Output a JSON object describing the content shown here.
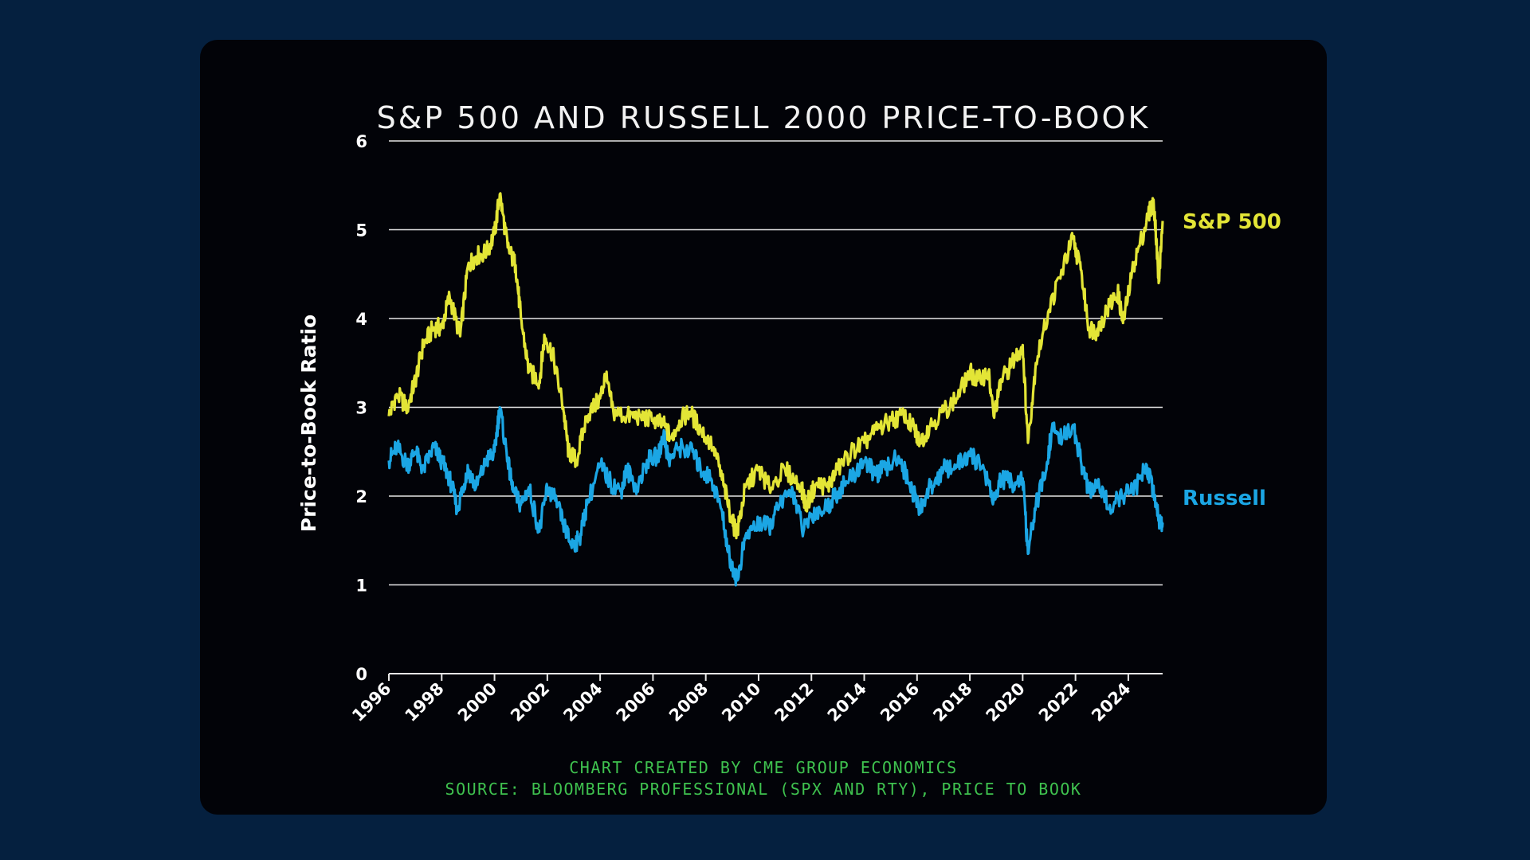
{
  "colors": {
    "background": "#05203f",
    "card": "#020308",
    "sp500": "#e3e536",
    "russell": "#1ba6e4",
    "credit": "#3fc24f",
    "grid": "#e6e6e6",
    "text": "#ffffff"
  },
  "chart_data": {
    "type": "line",
    "title": "S&P 500 AND RUSSELL 2000 PRICE-TO-BOOK",
    "xlabel": "",
    "ylabel": "Price-to-Book Ratio",
    "xlim": [
      1996,
      2025.3
    ],
    "ylim": [
      0,
      6
    ],
    "x_ticks": [
      "1996",
      "1998",
      "2000",
      "2002",
      "2004",
      "2006",
      "2008",
      "2010",
      "2012",
      "2014",
      "2016",
      "2018",
      "2020",
      "2022",
      "2024"
    ],
    "y_ticks": [
      "0",
      "1",
      "2",
      "3",
      "4",
      "5",
      "6"
    ],
    "grid": "horizontal",
    "legend": "inline-right",
    "series": [
      {
        "name": "S&P 500",
        "color": "#e3e536",
        "points": [
          [
            1996.0,
            2.9
          ],
          [
            1996.3,
            3.15
          ],
          [
            1996.7,
            3.0
          ],
          [
            1997.0,
            3.3
          ],
          [
            1997.3,
            3.7
          ],
          [
            1997.7,
            3.9
          ],
          [
            1998.0,
            3.9
          ],
          [
            1998.3,
            4.25
          ],
          [
            1998.7,
            3.8
          ],
          [
            1999.0,
            4.6
          ],
          [
            1999.3,
            4.7
          ],
          [
            1999.7,
            4.75
          ],
          [
            2000.0,
            4.95
          ],
          [
            2000.2,
            5.4
          ],
          [
            2000.5,
            4.8
          ],
          [
            2000.8,
            4.6
          ],
          [
            2001.0,
            4.0
          ],
          [
            2001.3,
            3.4
          ],
          [
            2001.7,
            3.3
          ],
          [
            2001.9,
            3.8
          ],
          [
            2002.2,
            3.6
          ],
          [
            2002.6,
            3.0
          ],
          [
            2002.8,
            2.5
          ],
          [
            2003.1,
            2.4
          ],
          [
            2003.5,
            2.9
          ],
          [
            2004.0,
            3.1
          ],
          [
            2004.2,
            3.35
          ],
          [
            2004.5,
            2.95
          ],
          [
            2005.0,
            2.9
          ],
          [
            2005.5,
            2.9
          ],
          [
            2006.0,
            2.85
          ],
          [
            2006.4,
            2.8
          ],
          [
            2006.7,
            2.65
          ],
          [
            2007.0,
            2.85
          ],
          [
            2007.4,
            2.95
          ],
          [
            2007.8,
            2.75
          ],
          [
            2008.3,
            2.55
          ],
          [
            2008.7,
            2.1
          ],
          [
            2009.0,
            1.7
          ],
          [
            2009.2,
            1.6
          ],
          [
            2009.5,
            2.1
          ],
          [
            2010.0,
            2.3
          ],
          [
            2010.4,
            2.1
          ],
          [
            2011.0,
            2.3
          ],
          [
            2011.6,
            2.1
          ],
          [
            2011.8,
            1.9
          ],
          [
            2012.2,
            2.15
          ],
          [
            2012.6,
            2.1
          ],
          [
            2013.0,
            2.3
          ],
          [
            2013.5,
            2.5
          ],
          [
            2014.0,
            2.6
          ],
          [
            2014.5,
            2.75
          ],
          [
            2015.0,
            2.85
          ],
          [
            2015.5,
            2.9
          ],
          [
            2015.9,
            2.75
          ],
          [
            2016.1,
            2.6
          ],
          [
            2016.5,
            2.8
          ],
          [
            2017.0,
            2.95
          ],
          [
            2017.5,
            3.1
          ],
          [
            2018.0,
            3.4
          ],
          [
            2018.3,
            3.3
          ],
          [
            2018.7,
            3.4
          ],
          [
            2018.9,
            2.9
          ],
          [
            2019.2,
            3.3
          ],
          [
            2019.6,
            3.5
          ],
          [
            2020.0,
            3.7
          ],
          [
            2020.2,
            2.6
          ],
          [
            2020.5,
            3.5
          ],
          [
            2021.0,
            4.1
          ],
          [
            2021.5,
            4.55
          ],
          [
            2021.9,
            4.9
          ],
          [
            2022.2,
            4.55
          ],
          [
            2022.5,
            3.9
          ],
          [
            2022.8,
            3.85
          ],
          [
            2023.2,
            4.1
          ],
          [
            2023.6,
            4.3
          ],
          [
            2023.8,
            3.95
          ],
          [
            2024.2,
            4.6
          ],
          [
            2024.6,
            5.0
          ],
          [
            2024.9,
            5.3
          ],
          [
            2025.0,
            5.2
          ],
          [
            2025.15,
            4.4
          ],
          [
            2025.3,
            5.1
          ]
        ]
      },
      {
        "name": "Russell",
        "color": "#1ba6e4",
        "points": [
          [
            1996.0,
            2.4
          ],
          [
            1996.3,
            2.55
          ],
          [
            1996.7,
            2.35
          ],
          [
            1997.0,
            2.5
          ],
          [
            1997.3,
            2.3
          ],
          [
            1997.7,
            2.55
          ],
          [
            1998.0,
            2.4
          ],
          [
            1998.3,
            2.2
          ],
          [
            1998.6,
            1.85
          ],
          [
            1998.8,
            2.1
          ],
          [
            1999.0,
            2.3
          ],
          [
            1999.3,
            2.1
          ],
          [
            1999.7,
            2.4
          ],
          [
            2000.0,
            2.5
          ],
          [
            2000.2,
            3.0
          ],
          [
            2000.5,
            2.4
          ],
          [
            2000.7,
            2.05
          ],
          [
            2001.0,
            1.9
          ],
          [
            2001.3,
            2.1
          ],
          [
            2001.7,
            1.6
          ],
          [
            2002.0,
            2.1
          ],
          [
            2002.3,
            1.95
          ],
          [
            2002.6,
            1.7
          ],
          [
            2002.9,
            1.45
          ],
          [
            2003.2,
            1.5
          ],
          [
            2003.5,
            1.9
          ],
          [
            2004.0,
            2.35
          ],
          [
            2004.4,
            2.15
          ],
          [
            2004.8,
            2.05
          ],
          [
            2005.0,
            2.3
          ],
          [
            2005.4,
            2.1
          ],
          [
            2005.8,
            2.4
          ],
          [
            2006.2,
            2.45
          ],
          [
            2006.4,
            2.7
          ],
          [
            2006.6,
            2.4
          ],
          [
            2007.0,
            2.55
          ],
          [
            2007.5,
            2.5
          ],
          [
            2007.8,
            2.3
          ],
          [
            2008.2,
            2.2
          ],
          [
            2008.6,
            1.85
          ],
          [
            2008.9,
            1.3
          ],
          [
            2009.2,
            1.05
          ],
          [
            2009.5,
            1.55
          ],
          [
            2010.0,
            1.7
          ],
          [
            2010.4,
            1.65
          ],
          [
            2010.8,
            1.9
          ],
          [
            2011.3,
            2.05
          ],
          [
            2011.7,
            1.6
          ],
          [
            2012.0,
            1.8
          ],
          [
            2012.5,
            1.85
          ],
          [
            2013.0,
            2.05
          ],
          [
            2013.5,
            2.2
          ],
          [
            2014.0,
            2.4
          ],
          [
            2014.4,
            2.25
          ],
          [
            2014.8,
            2.3
          ],
          [
            2015.3,
            2.45
          ],
          [
            2015.7,
            2.15
          ],
          [
            2016.1,
            1.85
          ],
          [
            2016.5,
            2.1
          ],
          [
            2017.0,
            2.3
          ],
          [
            2017.5,
            2.35
          ],
          [
            2018.0,
            2.45
          ],
          [
            2018.5,
            2.35
          ],
          [
            2018.9,
            1.95
          ],
          [
            2019.2,
            2.2
          ],
          [
            2019.6,
            2.15
          ],
          [
            2020.0,
            2.2
          ],
          [
            2020.2,
            1.35
          ],
          [
            2020.5,
            1.9
          ],
          [
            2020.9,
            2.3
          ],
          [
            2021.1,
            2.75
          ],
          [
            2021.5,
            2.65
          ],
          [
            2021.9,
            2.8
          ],
          [
            2022.2,
            2.4
          ],
          [
            2022.5,
            2.05
          ],
          [
            2022.9,
            2.1
          ],
          [
            2023.3,
            1.9
          ],
          [
            2023.8,
            2.0
          ],
          [
            2024.3,
            2.1
          ],
          [
            2024.7,
            2.35
          ],
          [
            2025.0,
            2.0
          ],
          [
            2025.15,
            1.75
          ],
          [
            2025.3,
            1.7
          ]
        ]
      }
    ],
    "series_labels": [
      "S&P 500",
      "Russell"
    ]
  },
  "footer": {
    "credit": "CHART CREATED BY CME GROUP ECONOMICS",
    "source": "SOURCE: BLOOMBERG PROFESSIONAL (SPX AND RTY), PRICE TO BOOK"
  }
}
